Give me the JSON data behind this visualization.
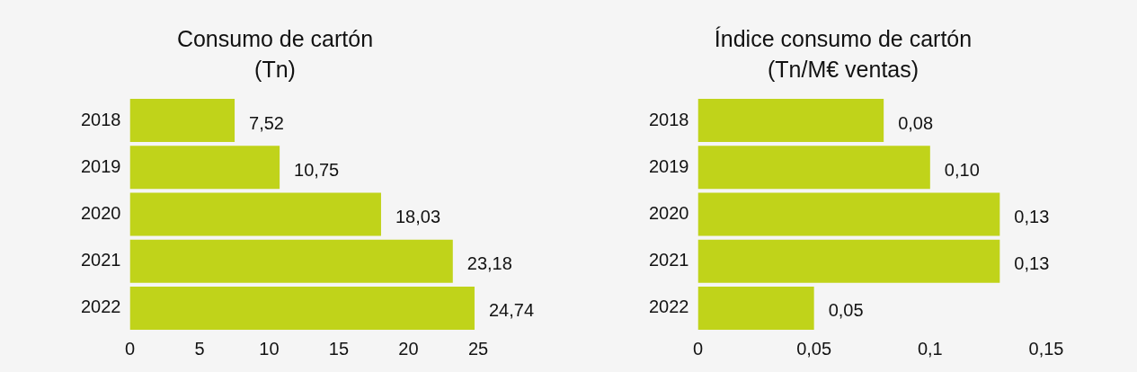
{
  "chart_data": [
    {
      "type": "bar",
      "orientation": "horizontal",
      "title": "Consumo de cartón",
      "subtitle": "(Tn)",
      "categories": [
        "2018",
        "2019",
        "2020",
        "2021",
        "2022"
      ],
      "values": [
        7.52,
        10.75,
        18.03,
        23.18,
        24.74
      ],
      "value_labels": [
        "7,52",
        "10,75",
        "18,03",
        "23,18",
        "24,74"
      ],
      "color": "#c0d31a",
      "xlim": [
        0,
        25
      ],
      "xticks": [
        0,
        5,
        10,
        15,
        20,
        25
      ],
      "grid": false
    },
    {
      "type": "bar",
      "orientation": "horizontal",
      "title": "Índice consumo de cartón",
      "subtitle": "(Tn/M€ ventas)",
      "categories": [
        "2018",
        "2019",
        "2020",
        "2021",
        "2022"
      ],
      "values": [
        0.08,
        0.1,
        0.13,
        0.13,
        0.05
      ],
      "value_labels": [
        "0,08",
        "0,10",
        "0,13",
        "0,13",
        "0,05"
      ],
      "color": "#c0d31a",
      "xlim": [
        0,
        0.15
      ],
      "xticks": [
        0,
        {
          "value": 0.05,
          "label": "0,05"
        },
        {
          "value": 0.1,
          "label": "0,1"
        },
        {
          "value": 0.15,
          "label": "0,15"
        }
      ],
      "grid": false
    }
  ]
}
